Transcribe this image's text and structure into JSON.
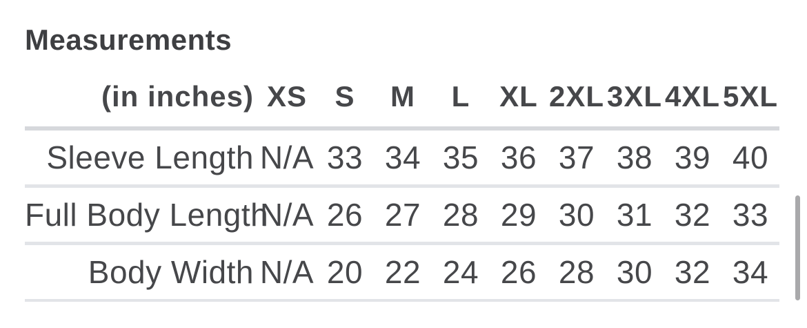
{
  "title": "Measurements",
  "table": {
    "unit_label": "(in inches)",
    "columns": [
      "XS",
      "S",
      "M",
      "L",
      "XL",
      "2XL",
      "3XL",
      "4XL",
      "5XL"
    ],
    "rows": [
      {
        "label": "Sleeve Length",
        "values": [
          "N/A",
          "33",
          "34",
          "35",
          "36",
          "37",
          "38",
          "39",
          "40"
        ]
      },
      {
        "label": "Full Body Length",
        "values": [
          "N/A",
          "26",
          "27",
          "28",
          "29",
          "30",
          "31",
          "32",
          "33"
        ]
      },
      {
        "label": "Body Width",
        "values": [
          "N/A",
          "20",
          "22",
          "24",
          "26",
          "28",
          "30",
          "32",
          "34"
        ]
      }
    ]
  },
  "colors": {
    "title_text": "#3e3f42",
    "body_text": "#46474a",
    "header_divider": "#d6d8dc",
    "row_divider": "#e2e4e8",
    "scrollbar_thumb": "#a9a9ab"
  }
}
